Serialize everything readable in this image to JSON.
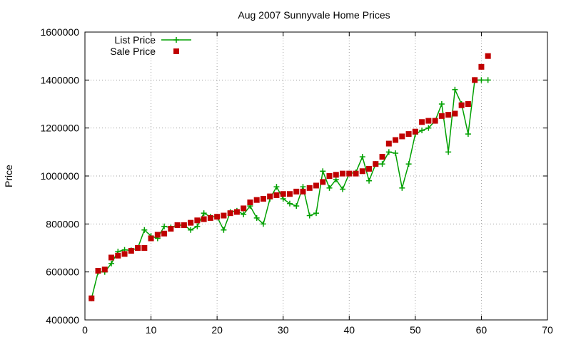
{
  "chart_data": {
    "type": "scatter",
    "title": "Aug 2007 Sunnyvale Home Prices",
    "xlabel": "",
    "ylabel": "Price",
    "xlim": [
      0,
      70
    ],
    "ylim": [
      400000,
      1600000
    ],
    "x_ticks": [
      "0",
      "10",
      "20",
      "30",
      "40",
      "50",
      "60",
      "70"
    ],
    "y_ticks": [
      "400000",
      "600000",
      "800000",
      "1000000",
      "1200000",
      "1400000",
      "1600000"
    ],
    "x_tick_values": [
      0,
      10,
      20,
      30,
      40,
      50,
      60,
      70
    ],
    "y_tick_values": [
      400000,
      600000,
      800000,
      1000000,
      1200000,
      1400000,
      1600000
    ],
    "grid": true,
    "legend_position": "top-left",
    "series": [
      {
        "name": "List Price",
        "style": "linespoints",
        "marker": "plus",
        "color": "#00a000",
        "x": [
          1,
          2,
          3,
          4,
          5,
          6,
          7,
          8,
          9,
          10,
          11,
          12,
          13,
          14,
          15,
          16,
          17,
          18,
          19,
          20,
          21,
          22,
          23,
          24,
          25,
          26,
          27,
          28,
          29,
          30,
          31,
          32,
          33,
          34,
          35,
          36,
          37,
          38,
          39,
          40,
          41,
          42,
          43,
          44,
          45,
          46,
          47,
          48,
          49,
          50,
          51,
          52,
          53,
          54,
          55,
          56,
          57,
          58,
          59,
          60,
          61
        ],
        "y": [
          490000,
          600000,
          600000,
          635000,
          685000,
          692000,
          690000,
          700000,
          775000,
          750000,
          740000,
          790000,
          785000,
          795000,
          795000,
          775000,
          790000,
          845000,
          830000,
          830000,
          775000,
          850000,
          855000,
          840000,
          875000,
          825000,
          800000,
          905000,
          955000,
          905000,
          885000,
          875000,
          955000,
          835000,
          845000,
          1020000,
          950000,
          985000,
          945000,
          1010000,
          1015000,
          1080000,
          980000,
          1050000,
          1050000,
          1100000,
          1095000,
          950000,
          1050000,
          1175000,
          1190000,
          1200000,
          1230000,
          1300000,
          1100000,
          1360000,
          1300000,
          1175000,
          1400000,
          1400000,
          1400000
        ]
      },
      {
        "name": "Sale Price",
        "style": "points",
        "marker": "square",
        "color": "#c00000",
        "x": [
          1,
          2,
          3,
          4,
          5,
          6,
          7,
          8,
          9,
          10,
          11,
          12,
          13,
          14,
          15,
          16,
          17,
          18,
          19,
          20,
          21,
          22,
          23,
          24,
          25,
          26,
          27,
          28,
          29,
          30,
          31,
          32,
          33,
          34,
          35,
          36,
          37,
          38,
          39,
          40,
          41,
          42,
          43,
          44,
          45,
          46,
          47,
          48,
          49,
          50,
          51,
          52,
          53,
          54,
          55,
          56,
          57,
          58,
          59,
          60,
          61
        ],
        "y": [
          490000,
          605000,
          610000,
          660000,
          668000,
          675000,
          688000,
          700000,
          700000,
          740000,
          755000,
          760000,
          780000,
          795000,
          795000,
          805000,
          815000,
          820000,
          825000,
          830000,
          835000,
          845000,
          850000,
          865000,
          890000,
          900000,
          905000,
          915000,
          920000,
          925000,
          925000,
          935000,
          935000,
          950000,
          960000,
          975000,
          1000000,
          1005000,
          1010000,
          1010000,
          1010000,
          1020000,
          1030000,
          1050000,
          1080000,
          1135000,
          1150000,
          1165000,
          1175000,
          1185000,
          1225000,
          1230000,
          1230000,
          1250000,
          1255000,
          1260000,
          1295000,
          1300000,
          1400000,
          1455000,
          1500000
        ]
      }
    ]
  }
}
